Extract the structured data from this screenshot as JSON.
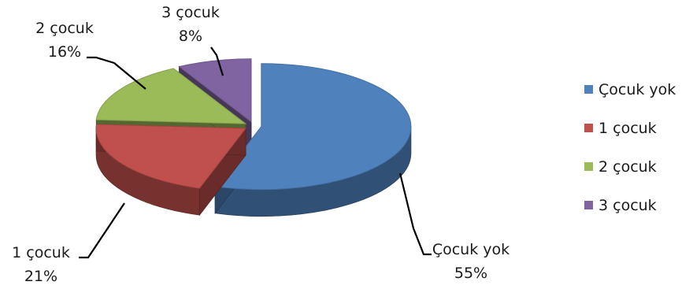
{
  "chart_data": {
    "type": "pie",
    "style": "3d-exploded",
    "categories": [
      "Çocuk yok",
      "1 çocuk",
      "2 çocuk",
      "3 çocuk"
    ],
    "values": [
      55,
      21,
      16,
      8
    ],
    "value_labels": [
      "55%",
      "21%",
      "16%",
      "8%"
    ],
    "colors": [
      "#4F81BD",
      "#C0504D",
      "#9BBB59",
      "#8064A2"
    ],
    "legend_position": "right",
    "title": ""
  }
}
